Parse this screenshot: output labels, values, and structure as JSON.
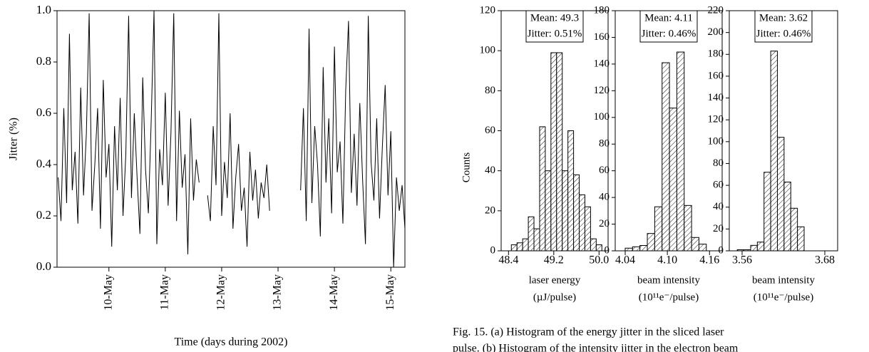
{
  "chart_data": [
    {
      "type": "line",
      "ylabel": "Jitter (%)",
      "xlabel": "Time (days during 2002)",
      "color": "#000000",
      "x": [
        9.1,
        9.15,
        9.2,
        9.25,
        9.3,
        9.35,
        9.4,
        9.45,
        9.5,
        9.55,
        9.6,
        9.65,
        9.7,
        9.75,
        9.8,
        9.85,
        9.9,
        9.95,
        10.0,
        10.05,
        10.1,
        10.15,
        10.2,
        10.25,
        10.3,
        10.35,
        10.4,
        10.45,
        10.5,
        10.55,
        10.6,
        10.65,
        10.7,
        10.75,
        10.8,
        10.85,
        10.9,
        10.95,
        11.0,
        11.05,
        11.1,
        11.15,
        11.2,
        11.25,
        11.3,
        11.35,
        11.4,
        11.45,
        11.5,
        11.55,
        11.6,
        11.65,
        11.75,
        11.8,
        11.85,
        11.9,
        11.95,
        12.0,
        12.05,
        12.1,
        12.15,
        12.2,
        12.25,
        12.3,
        12.35,
        12.4,
        12.45,
        12.5,
        12.55,
        12.6,
        12.65,
        12.7,
        12.75,
        12.8,
        12.85,
        13.1,
        13.4,
        13.45,
        13.5,
        13.55,
        13.6,
        13.65,
        13.7,
        13.75,
        13.8,
        13.85,
        13.9,
        13.95,
        14.0,
        14.05,
        14.1,
        14.15,
        14.2,
        14.25,
        14.3,
        14.35,
        14.4,
        14.45,
        14.5,
        14.55,
        14.6,
        14.65,
        14.7,
        14.75,
        14.8,
        14.85,
        14.9,
        14.95,
        15.0,
        15.05,
        15.1,
        15.15,
        15.2,
        15.25
      ],
      "values": [
        0.35,
        0.18,
        0.62,
        0.25,
        0.91,
        0.3,
        0.45,
        0.17,
        0.7,
        0.28,
        0.52,
        0.99,
        0.22,
        0.4,
        0.62,
        0.15,
        0.73,
        0.35,
        0.48,
        0.08,
        0.55,
        0.3,
        0.66,
        0.2,
        0.44,
        0.98,
        0.27,
        0.6,
        0.35,
        0.13,
        0.74,
        0.38,
        0.21,
        0.57,
        1.0,
        0.09,
        0.46,
        0.32,
        0.68,
        0.24,
        0.52,
        0.99,
        0.18,
        0.61,
        0.31,
        0.44,
        0.05,
        0.58,
        0.26,
        0.42,
        0.33,
        null,
        0.28,
        0.18,
        0.55,
        0.32,
        0.99,
        0.2,
        0.41,
        0.27,
        0.6,
        0.15,
        0.35,
        0.48,
        0.22,
        0.31,
        0.08,
        0.45,
        0.26,
        0.38,
        0.19,
        0.33,
        0.27,
        0.4,
        0.22,
        null,
        0.3,
        0.62,
        0.18,
        0.93,
        0.25,
        0.55,
        0.4,
        0.12,
        0.78,
        0.33,
        0.58,
        0.21,
        0.86,
        0.37,
        0.49,
        0.17,
        0.69,
        0.96,
        0.29,
        0.52,
        0.24,
        0.64,
        0.34,
        0.09,
        0.98,
        0.41,
        0.26,
        0.58,
        0.19,
        0.47,
        0.71,
        0.28,
        0.53,
        0.0,
        0.35,
        0.22,
        0.32,
        0.15
      ],
      "xlim": [
        9.08,
        15.25
      ],
      "ylim": [
        0,
        1
      ],
      "xticks": [
        {
          "value": 10,
          "label": "10-May"
        },
        {
          "value": 11,
          "label": "11-May"
        },
        {
          "value": 12,
          "label": "12-May"
        },
        {
          "value": 13,
          "label": "13-May"
        },
        {
          "value": 14,
          "label": "14-May"
        },
        {
          "value": 15,
          "label": "15-May"
        }
      ],
      "yticks": [
        {
          "value": 0,
          "label": "0.0"
        },
        0.2,
        0.4,
        0.6,
        0.8,
        {
          "value": 1,
          "label": "1.0"
        }
      ]
    },
    {
      "type": "histogram",
      "ylabel": "Counts",
      "xlabel": [
        "laser energy",
        "(µJ/pulse)"
      ],
      "annotations": [
        "Mean: 49.3",
        "Jitter: 0.51%"
      ],
      "color": "#000000",
      "bins": [
        48.45,
        48.55,
        48.65,
        48.75,
        48.85,
        48.95,
        49.05,
        49.15,
        49.25,
        49.35,
        49.45,
        49.55,
        49.65,
        49.75,
        49.85,
        49.95,
        50.05
      ],
      "values": [
        3,
        4,
        6,
        17,
        11,
        62,
        40,
        99,
        99,
        40,
        60,
        38,
        28,
        22,
        6,
        3
      ],
      "xlim": [
        48.27,
        50.16
      ],
      "ylim": [
        0,
        120
      ],
      "xticks": [
        48.4,
        49.2,
        {
          "value": 50,
          "label": "50.0"
        }
      ],
      "yticks": [
        0,
        20,
        40,
        60,
        80,
        100,
        120
      ]
    },
    {
      "type": "histogram",
      "xlabel": [
        "beam intensity",
        "(10¹¹e⁻/pulse)"
      ],
      "annotations": [
        "Mean: 4.11",
        "Jitter: 0.46%"
      ],
      "color": "#000000",
      "bins": [
        4.04,
        4.0505,
        4.061,
        4.0715,
        4.082,
        4.0925,
        4.103,
        4.1135,
        4.124,
        4.1345,
        4.145,
        4.1555
      ],
      "values": [
        2,
        3,
        4,
        13,
        33,
        141,
        107,
        149,
        34,
        10,
        5
      ],
      "xlim": [
        4.0258,
        4.178
      ],
      "ylim": [
        0,
        180
      ],
      "xticks": [
        4.04,
        {
          "value": 4.1,
          "label": "4.10"
        },
        4.16
      ],
      "yticks": [
        0,
        20,
        40,
        60,
        80,
        100,
        120,
        140,
        160,
        180
      ]
    },
    {
      "type": "histogram",
      "xlabel": [
        "beam intensity",
        "(10¹¹e⁻/pulse)"
      ],
      "annotations": [
        "Mean: 3.62",
        "Jitter: 0.46%"
      ],
      "color": "#000000",
      "bins": [
        3.553,
        3.5627,
        3.5724,
        3.5821,
        3.5918,
        3.6015,
        3.6112,
        3.6209,
        3.6306,
        3.6403,
        3.65
      ],
      "values": [
        1,
        1,
        5,
        8,
        72,
        183,
        104,
        63,
        39,
        22
      ],
      "xlim": [
        3.5414,
        3.6986
      ],
      "ylim": [
        0,
        220
      ],
      "xticks": [
        3.56,
        3.68
      ],
      "yticks": [
        0,
        20,
        40,
        60,
        80,
        100,
        120,
        140,
        160,
        180,
        200,
        220
      ]
    }
  ],
  "caption": [
    "Fig. 15. (a) Histogram of the energy jitter in the sliced laser",
    "pulse. (b) Histogram of the intensity jitter in the electron beam"
  ]
}
